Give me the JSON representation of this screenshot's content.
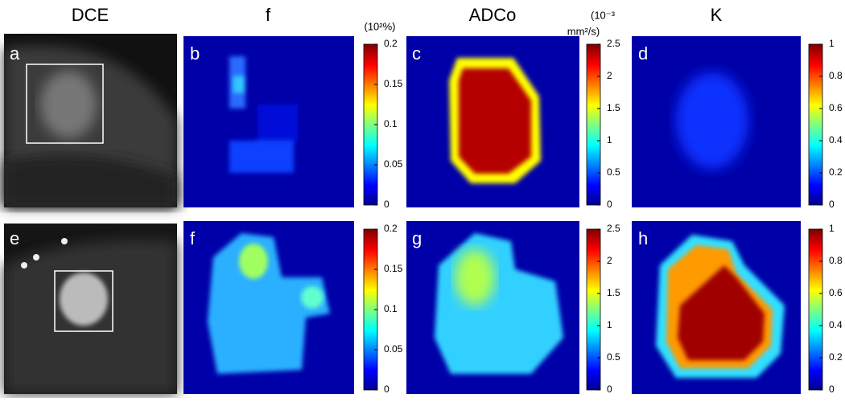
{
  "headers": [
    "DCE",
    "f",
    "ADCo",
    "K"
  ],
  "panels": [
    "a",
    "b",
    "c",
    "d",
    "e",
    "f",
    "g",
    "h"
  ],
  "colorbars": [
    {
      "unit": [
        "(10²%)"
      ],
      "lim": [
        0,
        0.2
      ],
      "ticks": [
        0,
        0.05,
        0.1,
        0.15,
        0.2
      ]
    },
    {
      "unit": [
        "(10⁻³",
        "mm²/s)"
      ],
      "lim": [
        0,
        2.5
      ],
      "ticks": [
        0,
        0.5,
        1,
        1.5,
        2,
        2.5
      ]
    },
    {
      "unit": [],
      "lim": [
        0,
        1
      ],
      "ticks": [
        0,
        0.2,
        0.4,
        0.6,
        0.8,
        1
      ]
    }
  ]
}
